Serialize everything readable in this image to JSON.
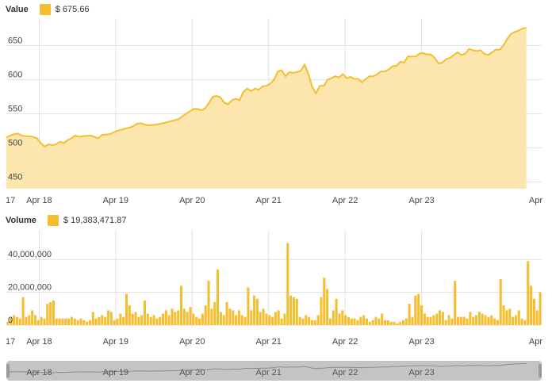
{
  "colors": {
    "accent": "#F5BE2E",
    "fill": "#FCE6AE",
    "grid": "#E1E1E1",
    "navigator_track": "#C4C4C4",
    "navigator_selection": "#E2E2E2"
  },
  "value_legend": {
    "title": "Value",
    "value": "$ 675.66"
  },
  "volume_legend": {
    "title": "Volume",
    "value": "$ 19,383,471.87"
  },
  "x_axis": {
    "start_label": "17",
    "end_label": "Apr",
    "ticks": [
      "Apr 18",
      "Apr 19",
      "Apr 20",
      "Apr 21",
      "Apr 22",
      "Apr 23"
    ]
  },
  "navigator": {
    "ticks": [
      "Apr 18",
      "Apr 19",
      "Apr 20",
      "Apr 21",
      "Apr 22",
      "Apr 23"
    ]
  },
  "chart_data": [
    {
      "type": "area",
      "name": "value",
      "ylim": [
        440,
        690
      ],
      "y_ticks": [
        450,
        500,
        550,
        600,
        650
      ],
      "y_tick_labels": [
        "450",
        "500",
        "550",
        "600",
        "650"
      ],
      "x_range_days": [
        17.0,
        24.0
      ],
      "x_ticks_days": [
        18,
        19,
        20,
        21,
        22,
        23
      ],
      "points": [
        [
          17.0,
          515
        ],
        [
          17.05,
          518
        ],
        [
          17.1,
          520
        ],
        [
          17.15,
          521
        ],
        [
          17.2,
          518
        ],
        [
          17.25,
          517
        ],
        [
          17.3,
          517
        ],
        [
          17.35,
          516
        ],
        [
          17.4,
          514
        ],
        [
          17.45,
          507
        ],
        [
          17.5,
          502
        ],
        [
          17.55,
          505
        ],
        [
          17.6,
          504
        ],
        [
          17.65,
          505
        ],
        [
          17.7,
          509
        ],
        [
          17.75,
          507
        ],
        [
          17.8,
          511
        ],
        [
          17.85,
          514
        ],
        [
          17.9,
          518
        ],
        [
          17.95,
          516
        ],
        [
          18.0,
          517
        ],
        [
          18.1,
          518
        ],
        [
          18.2,
          514
        ],
        [
          18.25,
          519
        ],
        [
          18.35,
          520
        ],
        [
          18.45,
          525
        ],
        [
          18.55,
          528
        ],
        [
          18.65,
          531
        ],
        [
          18.7,
          535
        ],
        [
          18.75,
          536
        ],
        [
          18.85,
          533
        ],
        [
          18.95,
          534
        ],
        [
          19.05,
          536
        ],
        [
          19.15,
          539
        ],
        [
          19.25,
          542
        ],
        [
          19.35,
          550
        ],
        [
          19.45,
          557
        ],
        [
          19.5,
          557
        ],
        [
          19.55,
          555
        ],
        [
          19.6,
          558
        ],
        [
          19.65,
          566
        ],
        [
          19.7,
          575
        ],
        [
          19.75,
          576
        ],
        [
          19.8,
          574
        ],
        [
          19.85,
          566
        ],
        [
          19.9,
          564
        ],
        [
          19.95,
          570
        ],
        [
          20.0,
          572
        ],
        [
          20.05,
          570
        ],
        [
          20.1,
          582
        ],
        [
          20.15,
          587
        ],
        [
          20.2,
          583
        ],
        [
          20.25,
          587
        ],
        [
          20.3,
          585
        ],
        [
          20.35,
          590
        ],
        [
          20.4,
          591
        ],
        [
          20.45,
          594
        ],
        [
          20.5,
          600
        ],
        [
          20.55,
          612
        ],
        [
          20.6,
          614
        ],
        [
          20.65,
          605
        ],
        [
          20.7,
          611
        ],
        [
          20.75,
          610
        ],
        [
          20.8,
          611
        ],
        [
          20.85,
          613
        ],
        [
          20.9,
          622
        ],
        [
          20.95,
          608
        ],
        [
          21.0,
          589
        ],
        [
          21.05,
          580
        ],
        [
          21.1,
          591
        ],
        [
          21.15,
          591
        ],
        [
          21.2,
          600
        ],
        [
          21.25,
          602
        ],
        [
          21.3,
          605
        ],
        [
          21.35,
          603
        ],
        [
          21.4,
          608
        ],
        [
          21.45,
          602
        ],
        [
          21.5,
          604
        ],
        [
          21.55,
          601
        ],
        [
          21.6,
          601
        ],
        [
          21.65,
          596
        ],
        [
          21.7,
          601
        ],
        [
          21.75,
          605
        ],
        [
          21.8,
          605
        ],
        [
          21.85,
          608
        ],
        [
          21.9,
          612
        ],
        [
          21.95,
          612
        ],
        [
          22.0,
          615
        ],
        [
          22.05,
          620
        ],
        [
          22.1,
          620
        ],
        [
          22.15,
          626
        ],
        [
          22.2,
          625
        ],
        [
          22.25,
          634
        ],
        [
          22.3,
          634
        ],
        [
          22.35,
          634
        ],
        [
          22.4,
          638
        ],
        [
          22.45,
          639
        ],
        [
          22.5,
          637
        ],
        [
          22.55,
          637
        ],
        [
          22.6,
          632
        ],
        [
          22.65,
          624
        ],
        [
          22.7,
          625
        ],
        [
          22.75,
          630
        ],
        [
          22.8,
          632
        ],
        [
          22.85,
          636
        ],
        [
          22.9,
          640
        ],
        [
          22.95,
          636
        ],
        [
          23.0,
          638
        ],
        [
          23.05,
          645
        ],
        [
          23.1,
          643
        ],
        [
          23.15,
          642
        ],
        [
          23.2,
          643
        ],
        [
          23.25,
          638
        ],
        [
          23.3,
          636
        ],
        [
          23.35,
          640
        ],
        [
          23.4,
          644
        ],
        [
          23.45,
          644
        ],
        [
          23.5,
          650
        ],
        [
          23.55,
          660
        ],
        [
          23.6,
          667
        ],
        [
          23.65,
          670
        ],
        [
          23.7,
          672
        ],
        [
          23.75,
          675
        ],
        [
          23.8,
          675.66
        ]
      ]
    },
    {
      "type": "bar",
      "name": "volume",
      "ylim": [
        -1000000,
        58000000
      ],
      "y_ticks": [
        0,
        20000000,
        40000000
      ],
      "y_tick_labels": [
        "0",
        "20,000,000",
        "40,000,000"
      ],
      "x_range_days": [
        17.0,
        24.0
      ],
      "x_ticks_days": [
        18,
        19,
        20,
        21,
        22,
        23
      ],
      "values": [
        2000000,
        5000000,
        6000000,
        5000000,
        4000000,
        17000000,
        5000000,
        6000000,
        9000000,
        6000000,
        3000000,
        5000000,
        4000000,
        13000000,
        14000000,
        15000000,
        4000000,
        4000000,
        4000000,
        4000000,
        4000000,
        5000000,
        4000000,
        3000000,
        4000000,
        3000000,
        2000000,
        3000000,
        8000000,
        4000000,
        5000000,
        6000000,
        5000000,
        9000000,
        8000000,
        3000000,
        4000000,
        7000000,
        5000000,
        19000000,
        12000000,
        7000000,
        8000000,
        5000000,
        6000000,
        15000000,
        7000000,
        5000000,
        6000000,
        4000000,
        5000000,
        7000000,
        9000000,
        6000000,
        10000000,
        8000000,
        9000000,
        24000000,
        10000000,
        8000000,
        11000000,
        7000000,
        5000000,
        4000000,
        7000000,
        12000000,
        27000000,
        10000000,
        14000000,
        34000000,
        8000000,
        6000000,
        14000000,
        10000000,
        9000000,
        6000000,
        9000000,
        6000000,
        5000000,
        23000000,
        9000000,
        18000000,
        16000000,
        8000000,
        10000000,
        7000000,
        6000000,
        5000000,
        8000000,
        9000000,
        4000000,
        7000000,
        50000000,
        18000000,
        17000000,
        16000000,
        5000000,
        4000000,
        6000000,
        5000000,
        3000000,
        3000000,
        6000000,
        17000000,
        29000000,
        22000000,
        4000000,
        9000000,
        16000000,
        7000000,
        9000000,
        6000000,
        5000000,
        4000000,
        4000000,
        3000000,
        5000000,
        6000000,
        4000000,
        2000000,
        3000000,
        5000000,
        4000000,
        7000000,
        3000000,
        3000000,
        2000000,
        2000000,
        1000000,
        2000000,
        3000000,
        4000000,
        13000000,
        5000000,
        18000000,
        19000000,
        12000000,
        7000000,
        5000000,
        5000000,
        6000000,
        7000000,
        9000000,
        8000000,
        3000000,
        6000000,
        4000000,
        27000000,
        5000000,
        5000000,
        5000000,
        4000000,
        8000000,
        5000000,
        6000000,
        8000000,
        7000000,
        6000000,
        5000000,
        6000000,
        4000000,
        3000000,
        28000000,
        12000000,
        9000000,
        10000000,
        5000000,
        6000000,
        9000000,
        4000000,
        3000000,
        39000000,
        24000000,
        16000000,
        9000000,
        20000000
      ]
    }
  ]
}
